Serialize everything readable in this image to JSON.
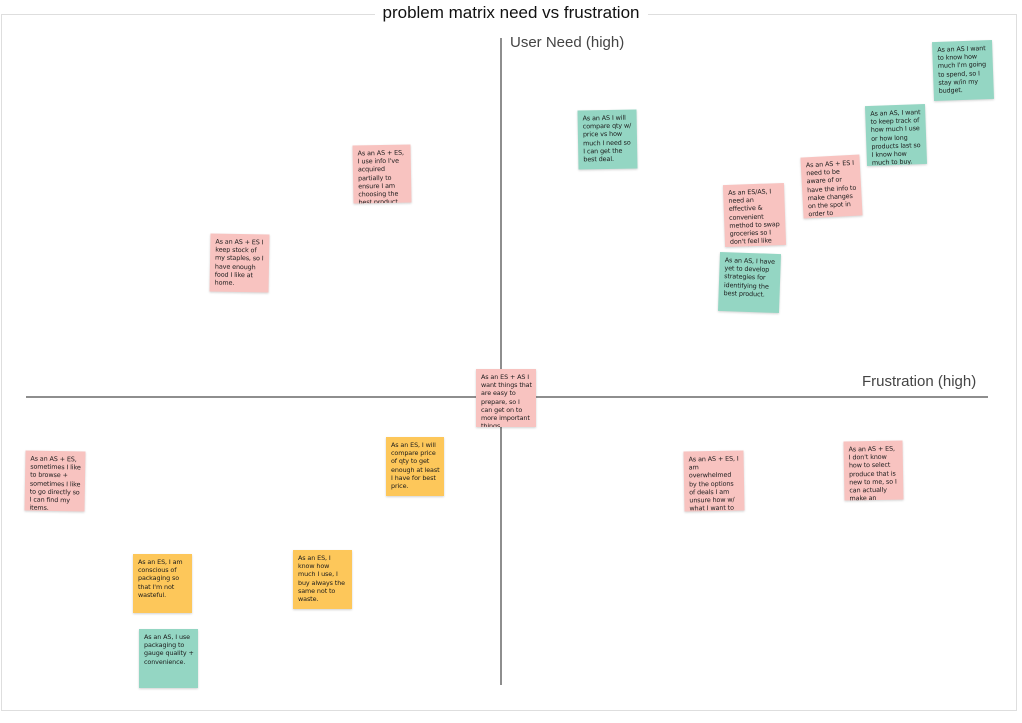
{
  "title": "problem matrix need vs frustration",
  "axes": {
    "y_label": "User Need (high)",
    "x_label": "Frustration (high)"
  },
  "colors": {
    "pink": "#f8c3c0",
    "green": "#94d6c3",
    "yellow": "#fdc75a",
    "axis": "#8e8e8e"
  },
  "notes": [
    {
      "text": "As an AS + ES, I use info I've acquired partially to ensure I am choosing the best product for me.",
      "color": "pink"
    },
    {
      "text": "As an AS + ES I keep stock of my staples, so I have enough food I like at home.",
      "color": "pink"
    },
    {
      "text": "As an AS I will compare qty w/ price vs how much I need so I can get the best deal.",
      "color": "green"
    },
    {
      "text": "As an AS I want to know how much I'm going to spend, so I stay w/in my budget.",
      "color": "green"
    },
    {
      "text": "As an AS, I want to keep track of how much I use or how long products last so I know how much to buy.",
      "color": "green"
    },
    {
      "text": "As an AS + ES I need to be aware of or have the info to make changes on the spot in order to complete my plan.",
      "color": "pink"
    },
    {
      "text": "As an ES/AS, I need an effective & convenient method to swap groceries so I don't feel like I'm missing out.",
      "color": "pink"
    },
    {
      "text": "As an AS, I have yet to develop strategies for identifying the best product.",
      "color": "green"
    },
    {
      "text": "As an ES + AS I want things that are easy to prepare, so I can get on to more important things.",
      "color": "pink"
    },
    {
      "text": "As an AS + ES, sometimes I like to browse + sometimes I like to go directly so I can find my items.",
      "color": "pink"
    },
    {
      "text": "As an ES, I will compare price of qty to get enough at least I have for best price.",
      "color": "yellow"
    },
    {
      "text": "As an AS + ES, I am overwhelmed by the options of deals I am unsure how w/ what I want to make the best choice.",
      "color": "pink"
    },
    {
      "text": "As an AS + ES, I don't know how to select produce that is new to me, so I can actually make an educated choice.",
      "color": "pink"
    },
    {
      "text": "As an ES, I am conscious of packaging so that I'm not wasteful.",
      "color": "yellow"
    },
    {
      "text": "As an ES, I know how much I use, I buy always the same not to waste.",
      "color": "yellow"
    },
    {
      "text": "As an AS, I use packaging to gauge quality + convenience.",
      "color": "green"
    }
  ]
}
